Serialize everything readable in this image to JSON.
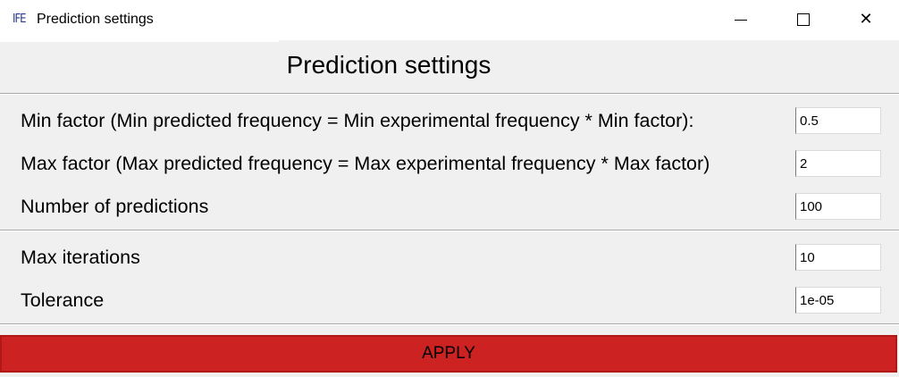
{
  "window": {
    "icon_text": "IFE",
    "title": "Prediction settings",
    "controls": {
      "minimize": "minimize-icon",
      "maximize": "maximize-icon",
      "close": "close-icon",
      "close_glyph": "✕"
    }
  },
  "panel": {
    "heading": "Prediction settings",
    "fields": [
      {
        "label": "Min factor (Min predicted frequency = Min experimental frequency * Min factor):",
        "value": "0.5"
      },
      {
        "label": "Max factor (Max predicted frequency = Max experimental frequency * Max factor)",
        "value": "2"
      },
      {
        "label": "Number of predictions",
        "value": "100"
      },
      {
        "label": "Max iterations",
        "value": "10"
      },
      {
        "label": "Tolerance",
        "value": "1e-05"
      }
    ],
    "apply_label": "APPLY"
  },
  "colors": {
    "apply_button": "#cc2222",
    "window_background": "#f0f0f0",
    "titlebar_background": "#ffffff"
  }
}
